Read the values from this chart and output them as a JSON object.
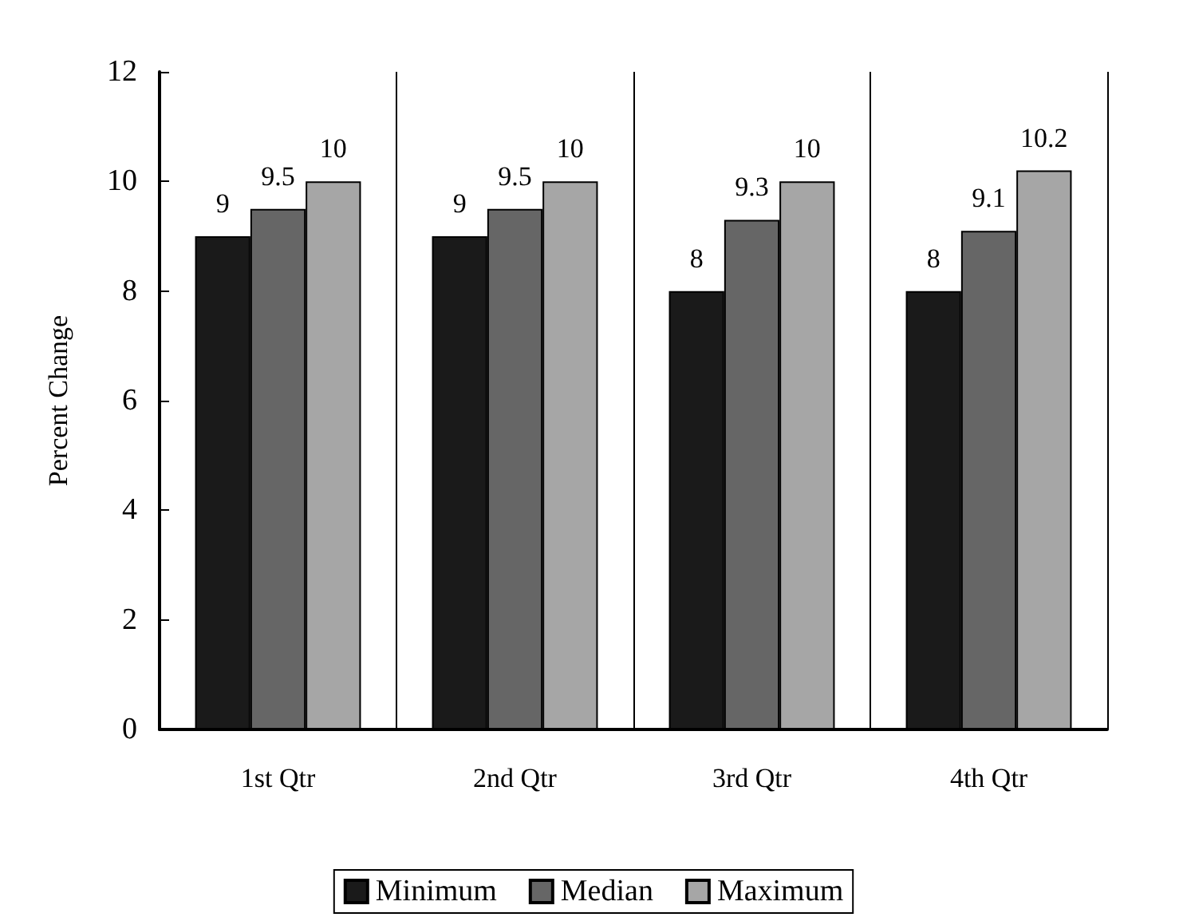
{
  "chart_data": {
    "type": "bar",
    "ylabel": "Percent Change",
    "categories": [
      "1st Qtr",
      "2nd Qtr",
      "3rd Qtr",
      "4th Qtr"
    ],
    "series": [
      {
        "name": "Minimum",
        "color": "#1a1a1a",
        "values": [
          9,
          9,
          8,
          8
        ]
      },
      {
        "name": "Median",
        "color": "#666666",
        "values": [
          9.5,
          9.5,
          9.3,
          9.1
        ]
      },
      {
        "name": "Maximum",
        "color": "#a6a6a6",
        "values": [
          10,
          10,
          10,
          10.2
        ]
      }
    ],
    "ylim": [
      0,
      12
    ],
    "yticks": [
      0,
      2,
      4,
      6,
      8,
      10,
      12
    ],
    "grid": "x",
    "legend": "bottom",
    "data_labels": true
  }
}
